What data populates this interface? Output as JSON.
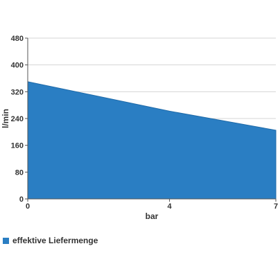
{
  "chart_data": {
    "type": "area",
    "x": [
      0,
      4,
      7
    ],
    "x_ticks": [
      "0",
      "4",
      "7"
    ],
    "series": [
      {
        "name": "effektive Liefermenge",
        "values": [
          350,
          262,
          205
        ],
        "color": "#2a7ec3"
      }
    ],
    "xlabel": "bar",
    "ylabel": "l/min",
    "xlim": [
      0,
      7
    ],
    "ylim": [
      0,
      480
    ],
    "y_ticks": [
      0,
      80,
      160,
      240,
      320,
      400,
      480
    ],
    "grid": true,
    "legend_position": "bottom-left"
  }
}
